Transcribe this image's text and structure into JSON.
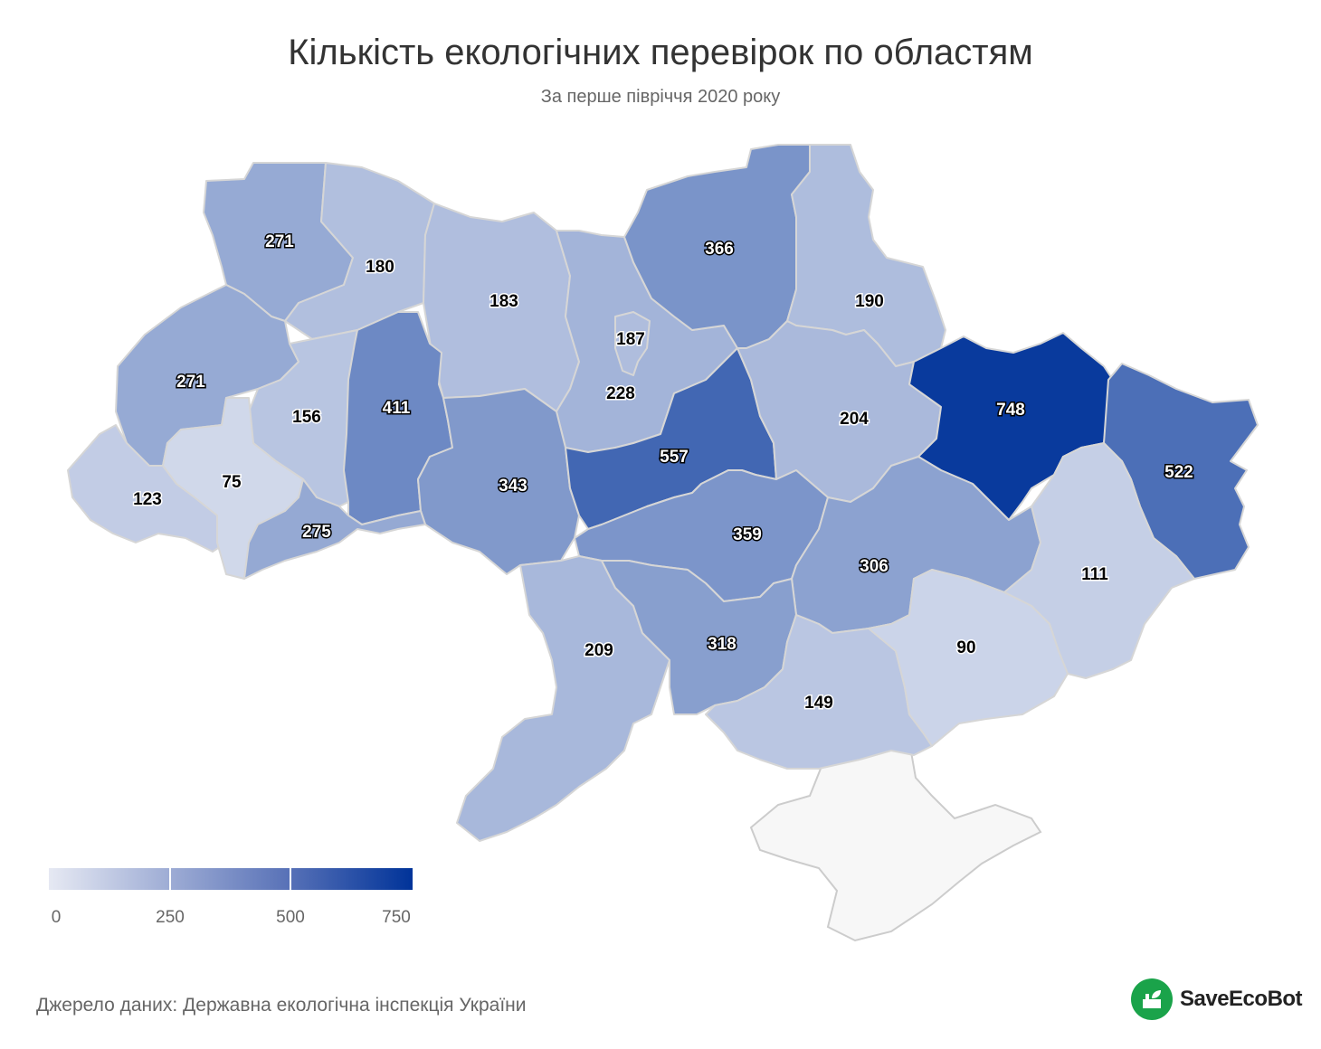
{
  "title": "Кількість екологічних перевірок по областям",
  "subtitle": "За перше півріччя 2020 року",
  "source": "Джерело даних: Державна екологічна інспекція України",
  "logo": {
    "text": "SaveEcoBot",
    "color": "#1aa34a"
  },
  "legend": {
    "min": 0,
    "max": 780,
    "labels": [
      "0",
      "250",
      "500",
      "750"
    ],
    "color_low": "#e6e9f3",
    "color_high": "#003399"
  },
  "regions": [
    {
      "id": "volyn",
      "value": 271
    },
    {
      "id": "rivne",
      "value": 180
    },
    {
      "id": "zhytomyr",
      "value": 183
    },
    {
      "id": "kyiv-oblast",
      "value": 228
    },
    {
      "id": "kyiv-city",
      "value": 187
    },
    {
      "id": "chernihiv",
      "value": 366
    },
    {
      "id": "sumy",
      "value": 190
    },
    {
      "id": "lviv",
      "value": 271
    },
    {
      "id": "ternopil",
      "value": 156
    },
    {
      "id": "khmelnytskyi",
      "value": 411
    },
    {
      "id": "vinnytsia",
      "value": 343
    },
    {
      "id": "cherkasy",
      "value": 557
    },
    {
      "id": "poltava",
      "value": 204
    },
    {
      "id": "kharkiv",
      "value": 748
    },
    {
      "id": "luhansk",
      "value": 522
    },
    {
      "id": "zakarpattia",
      "value": 123
    },
    {
      "id": "ivano-frankivsk",
      "value": 75
    },
    {
      "id": "chernivtsi",
      "value": 275
    },
    {
      "id": "kirovohrad",
      "value": 359
    },
    {
      "id": "dnipropetrovsk",
      "value": 306
    },
    {
      "id": "donetsk",
      "value": 111
    },
    {
      "id": "odesa",
      "value": 209
    },
    {
      "id": "mykolaiv",
      "value": 318
    },
    {
      "id": "kherson",
      "value": 149
    },
    {
      "id": "zaporizhzhia",
      "value": 90
    }
  ]
}
